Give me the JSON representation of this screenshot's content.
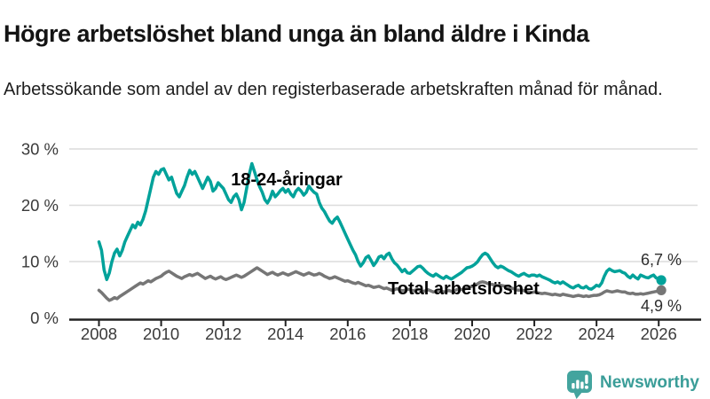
{
  "header": {
    "title": "Högre arbetslöshet bland unga än bland äldre i Kinda",
    "subtitle": "Arbetssökande som andel av den registerbaserade arbetskraften månad för månad."
  },
  "chart_data": {
    "type": "line",
    "title": "Högre arbetslöshet bland unga än bland äldre i Kinda",
    "subtitle": "Arbetssökande som andel av den registerbaserade arbetskraften månad för månad.",
    "unit": "%",
    "frequency": "monthly",
    "x_start": "2008-01",
    "x_end": "2026-02",
    "ylim": [
      0,
      32
    ],
    "grid": "horizontal",
    "legend_position": "inline-labels",
    "colors": {
      "youth": "#00a29a",
      "total": "#767676",
      "gridline": "#dcdcdc",
      "axis": "#222222",
      "tick_text": "#3a3a3a"
    },
    "y_ticks": [
      {
        "label": "0 %",
        "v": 0
      },
      {
        "label": "10 %",
        "v": 10
      },
      {
        "label": "20 %",
        "v": 20
      },
      {
        "label": "30 %",
        "v": 30
      }
    ],
    "x_ticks": [
      {
        "label": "2008",
        "year": 2008
      },
      {
        "label": "2010",
        "year": 2010
      },
      {
        "label": "2012",
        "year": 2012
      },
      {
        "label": "2014",
        "year": 2014
      },
      {
        "label": "2016",
        "year": 2016
      },
      {
        "label": "2018",
        "year": 2018
      },
      {
        "label": "2020",
        "year": 2020
      },
      {
        "label": "2022",
        "year": 2022
      },
      {
        "label": "2024",
        "year": 2024
      },
      {
        "label": "2026",
        "year": 2026
      }
    ],
    "series": [
      {
        "id": "youth",
        "name": "18-24-åringar",
        "color": "#00a29a",
        "end_value": 6.7,
        "end_label": "6,7 %",
        "values": [
          13.5,
          12.0,
          8.5,
          6.8,
          8.0,
          10.0,
          11.5,
          12.2,
          11.0,
          12.0,
          13.5,
          14.5,
          15.5,
          16.5,
          16.0,
          17.0,
          16.5,
          17.5,
          19.0,
          21.0,
          23.0,
          25.0,
          26.0,
          25.5,
          26.3,
          26.5,
          25.5,
          24.5,
          25.0,
          23.5,
          22.1,
          21.5,
          22.5,
          23.5,
          25.0,
          26.2,
          25.5,
          26.0,
          25.0,
          24.0,
          23.0,
          24.0,
          25.0,
          24.2,
          22.5,
          23.0,
          24.0,
          23.5,
          23.0,
          22.0,
          21.0,
          20.5,
          21.5,
          22.0,
          21.0,
          19.2,
          20.5,
          23.0,
          25.5,
          27.4,
          26.0,
          24.5,
          23.3,
          22.3,
          21.0,
          20.4,
          21.2,
          22.5,
          21.5,
          22.0,
          22.6,
          23.0,
          22.3,
          22.8,
          22.0,
          21.5,
          22.5,
          23.0,
          22.5,
          21.8,
          22.3,
          23.4,
          22.8,
          22.3,
          22.0,
          20.5,
          19.5,
          18.9,
          18.0,
          17.2,
          16.8,
          17.5,
          17.9,
          17.0,
          16.0,
          15.0,
          14.0,
          13.0,
          12.0,
          11.2,
          10.0,
          9.2,
          9.8,
          10.7,
          11.0,
          10.2,
          9.3,
          9.9,
          10.8,
          11.0,
          10.5,
          11.2,
          11.5,
          10.5,
          9.8,
          9.4,
          8.8,
          8.2,
          8.6,
          8.0,
          7.9,
          8.3,
          8.7,
          9.1,
          9.2,
          8.8,
          8.3,
          7.9,
          7.6,
          7.4,
          7.8,
          7.5,
          7.2,
          7.0,
          7.4,
          7.1,
          6.9,
          7.2,
          7.5,
          7.8,
          8.1,
          8.5,
          8.9,
          9.0,
          9.2,
          9.5,
          9.9,
          10.6,
          11.2,
          11.5,
          11.2,
          10.5,
          9.8,
          9.2,
          8.9,
          9.2,
          9.0,
          8.7,
          8.4,
          8.2,
          7.9,
          7.6,
          7.4,
          7.7,
          7.9,
          7.6,
          7.4,
          7.6,
          7.6,
          7.4,
          7.6,
          7.3,
          7.1,
          6.9,
          6.7,
          6.4,
          6.2,
          6.4,
          6.1,
          6.4,
          6.1,
          5.8,
          5.5,
          5.3,
          5.6,
          5.8,
          5.4,
          5.3,
          5.6,
          5.2,
          5.1,
          5.4,
          5.8,
          5.6,
          6.2,
          7.4,
          8.3,
          8.7,
          8.4,
          8.2,
          8.3,
          8.4,
          8.1,
          7.9,
          7.4,
          7.1,
          7.6,
          7.2,
          6.9,
          7.6,
          7.4,
          7.2,
          7.1,
          7.4,
          7.6,
          7.1,
          6.9,
          6.7
        ]
      },
      {
        "id": "total",
        "name": "Total arbetslöshet",
        "color": "#767676",
        "end_value": 4.9,
        "end_label": "4,9 %",
        "values": [
          4.9,
          4.5,
          4.0,
          3.5,
          3.1,
          3.3,
          3.6,
          3.4,
          3.8,
          4.1,
          4.4,
          4.7,
          5.0,
          5.3,
          5.6,
          5.9,
          6.2,
          6.0,
          6.3,
          6.6,
          6.4,
          6.7,
          7.0,
          7.2,
          7.4,
          7.8,
          8.1,
          8.3,
          8.0,
          7.7,
          7.4,
          7.2,
          7.0,
          7.3,
          7.5,
          7.7,
          7.5,
          7.7,
          7.9,
          7.6,
          7.3,
          7.0,
          7.2,
          7.4,
          7.1,
          6.9,
          7.1,
          7.3,
          7.0,
          6.8,
          7.0,
          7.2,
          7.4,
          7.6,
          7.4,
          7.2,
          7.4,
          7.7,
          8.0,
          8.3,
          8.6,
          8.9,
          8.6,
          8.3,
          8.0,
          7.7,
          7.9,
          8.1,
          7.8,
          7.6,
          7.8,
          8.0,
          7.8,
          7.6,
          7.8,
          8.0,
          8.2,
          8.0,
          7.8,
          7.6,
          7.8,
          8.0,
          7.8,
          7.6,
          7.7,
          7.9,
          7.7,
          7.4,
          7.2,
          7.0,
          7.1,
          7.3,
          7.1,
          6.9,
          6.7,
          6.5,
          6.6,
          6.4,
          6.2,
          6.1,
          6.3,
          6.1,
          5.9,
          5.7,
          5.8,
          5.6,
          5.4,
          5.5,
          5.6,
          5.4,
          5.2,
          5.3,
          5.1,
          4.9,
          5.0,
          5.2,
          5.0,
          4.8,
          4.9,
          5.1,
          5.0,
          4.8,
          4.9,
          5.1,
          4.9,
          4.7,
          4.8,
          5.0,
          4.8,
          4.6,
          4.7,
          4.9,
          4.8,
          4.6,
          4.7,
          4.9,
          4.7,
          4.8,
          5.0,
          5.2,
          5.0,
          5.1,
          5.3,
          5.5,
          5.6,
          5.8,
          6.0,
          6.3,
          6.4,
          6.3,
          6.1,
          6.0,
          5.9,
          5.8,
          5.7,
          5.8,
          5.7,
          5.6,
          5.5,
          5.3,
          5.2,
          5.0,
          4.9,
          5.0,
          4.8,
          4.7,
          4.6,
          4.5,
          4.6,
          4.5,
          4.4,
          4.3,
          4.4,
          4.3,
          4.2,
          4.1,
          4.2,
          4.1,
          4.0,
          4.2,
          4.1,
          4.0,
          3.9,
          3.8,
          3.9,
          4.0,
          3.9,
          3.8,
          3.9,
          3.8,
          3.9,
          4.0,
          4.0,
          4.1,
          4.3,
          4.6,
          4.8,
          4.7,
          4.6,
          4.7,
          4.8,
          4.7,
          4.6,
          4.6,
          4.4,
          4.3,
          4.4,
          4.2,
          4.2,
          4.3,
          4.2,
          4.3,
          4.4,
          4.5,
          4.6,
          4.7,
          4.8,
          4.9
        ]
      }
    ]
  },
  "footer": {
    "brand": "Newsworthy",
    "brand_color": "#3a9d98",
    "icon_color": "#43a49e"
  }
}
